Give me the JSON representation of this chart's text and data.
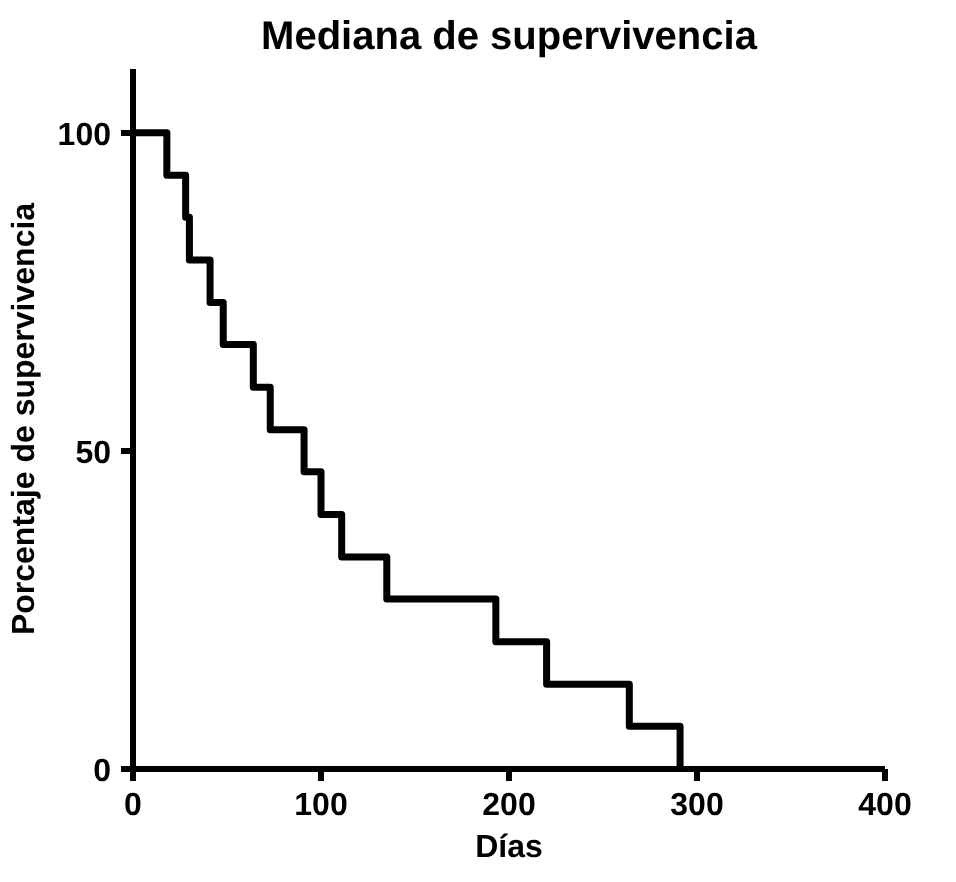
{
  "chart_data": {
    "type": "step",
    "title": "Mediana de supervivencia",
    "xlabel": "Días",
    "ylabel": "Porcentaje de supervivencia",
    "x": [
      0,
      18,
      28,
      30,
      41,
      48,
      64,
      73,
      91,
      100,
      111,
      135,
      193,
      220,
      264,
      291
    ],
    "series": [
      {
        "color": "#000000",
        "values": [
          100,
          93.3,
          86.7,
          80,
          73.3,
          66.7,
          60,
          53.3,
          46.7,
          40,
          33.3,
          26.7,
          20,
          13.3,
          6.7,
          0
        ]
      }
    ],
    "xlim": [
      0,
      400
    ],
    "xticks": [
      0,
      100,
      200,
      300,
      400
    ],
    "ylim": [
      0,
      110
    ],
    "yticks": [
      0,
      50,
      100
    ],
    "grid": false,
    "marker": "none",
    "line_style": "solid"
  }
}
